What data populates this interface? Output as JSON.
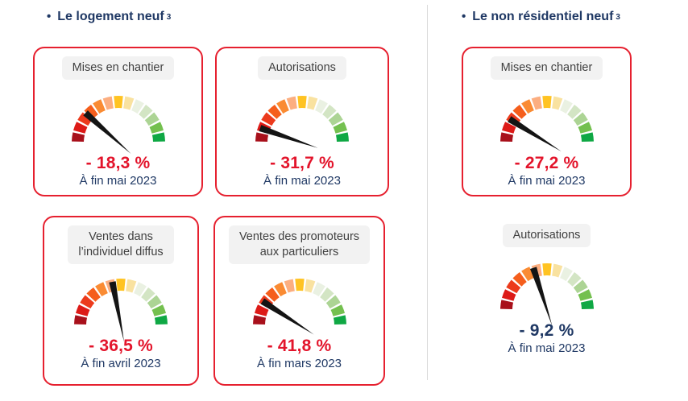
{
  "colors": {
    "navy": "#1F3864",
    "value_red": "#E3142B",
    "card_border": "#E6202F",
    "label_bg": "#F2F2F2",
    "label_text": "#404040",
    "divider": "#D9D9D9",
    "needle": "#141414"
  },
  "chart_data": {
    "type": "gauge",
    "arc_degrees": 180,
    "segment_colors": [
      "#A8101B",
      "#DD1A17",
      "#EC3A1C",
      "#F55E1C",
      "#FA8B33",
      "#FCAE80",
      "#FFC322",
      "#F9E2A0",
      "#EAF1E2",
      "#D3E5C4",
      "#ACD494",
      "#74C04F",
      "#0FA844"
    ],
    "groups": [
      {
        "title": "Le logement neuf",
        "footnote_marker": "3",
        "gauges": [
          {
            "label": "Mises en chantier",
            "value_label": "- 18,3 %",
            "value_pct": -18.3,
            "period": "À fin mai 2023",
            "needle_angle_deg": 138,
            "bordered": true,
            "value_color": "#E3142B"
          },
          {
            "label": "Autorisations",
            "value_label": "- 31,7 %",
            "value_pct": -31.7,
            "period": "À fin mai 2023",
            "needle_angle_deg": 161,
            "bordered": true,
            "value_color": "#E3142B"
          },
          {
            "label": "Ventes dans\nl’individuel diffus",
            "value_label": "- 36,5 %",
            "value_pct": -36.5,
            "period": "À fin avril 2023",
            "needle_angle_deg": 101,
            "bordered": true,
            "value_color": "#E3142B"
          },
          {
            "label": "Ventes des promoteurs\naux particuliers",
            "value_label": "- 41,8 %",
            "value_pct": -41.8,
            "period": "À fin mars 2023",
            "needle_angle_deg": 147,
            "bordered": true,
            "value_color": "#E3142B"
          }
        ]
      },
      {
        "title": "Le non résidentiel neuf",
        "footnote_marker": "3",
        "gauges": [
          {
            "label": "Mises en chantier",
            "value_label": "- 27,2 %",
            "value_pct": -27.2,
            "period": "À fin mai 2023",
            "needle_angle_deg": 148,
            "bordered": true,
            "value_color": "#E3142B"
          },
          {
            "label": "Autorisations",
            "value_label": "- 9,2 %",
            "value_pct": -9.2,
            "period": "À fin mai 2023",
            "needle_angle_deg": 108,
            "bordered": false,
            "value_color": "#1F3864"
          }
        ]
      }
    ]
  }
}
